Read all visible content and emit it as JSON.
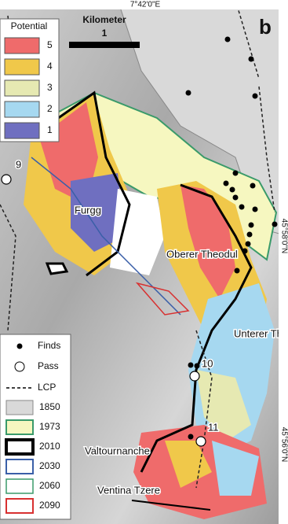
{
  "map": {
    "top_coordinate": "7°42'0\"E",
    "panel_label": "b",
    "right_coordinates": [
      "45°58'0\"N",
      "45°56'0\"N"
    ],
    "scale": {
      "title": "Kilometer",
      "value": 1
    },
    "potential_legend": {
      "title": "Potential",
      "classes": [
        5,
        4,
        3,
        2,
        1
      ]
    },
    "symbol_legend": [
      "Finds",
      "Pass",
      "LCP"
    ],
    "year_legend": [
      1850,
      1973,
      2010,
      2030,
      2060,
      2090
    ],
    "places": [
      "Furgg",
      "Oberer Theodul",
      "Unterer Theodul",
      "Valtournanche",
      "Ventina Tzere"
    ],
    "passes": [
      9,
      10,
      11
    ]
  }
}
